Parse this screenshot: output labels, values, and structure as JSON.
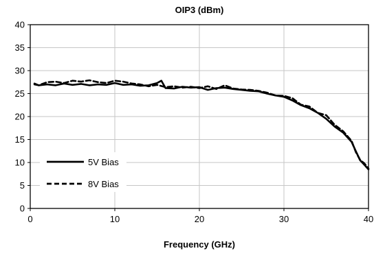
{
  "chart_data": {
    "type": "line",
    "title": "OIP3 (dBm)",
    "xlabel": "Frequency (GHz)",
    "ylabel": "",
    "xlim": [
      0,
      40
    ],
    "ylim": [
      0,
      40
    ],
    "xticks": [
      0,
      10,
      20,
      30,
      40
    ],
    "yticks": [
      0,
      5,
      10,
      15,
      20,
      25,
      30,
      35,
      40
    ],
    "grid": true,
    "legend_position": "bottom-left",
    "series": [
      {
        "name": "5V Bias",
        "style": "solid",
        "color": "#000000",
        "x": [
          0.5,
          1,
          2,
          3,
          4,
          5,
          6,
          7,
          8,
          9,
          10,
          11,
          12,
          13,
          14,
          15,
          15.5,
          16,
          17,
          18,
          19,
          20,
          21,
          22,
          23,
          24,
          25,
          26,
          27,
          28,
          29,
          30,
          31,
          32,
          33,
          34,
          35,
          36,
          37,
          38,
          38.5,
          39,
          39.5,
          40
        ],
        "y": [
          27.0,
          26.8,
          27.0,
          26.8,
          27.2,
          26.9,
          27.1,
          26.8,
          27.0,
          26.9,
          27.3,
          26.9,
          27.0,
          26.7,
          26.8,
          27.3,
          27.8,
          26.2,
          26.1,
          26.5,
          26.3,
          26.4,
          25.8,
          26.2,
          26.3,
          26.0,
          25.8,
          25.6,
          25.5,
          25.0,
          24.6,
          24.3,
          23.5,
          22.5,
          21.8,
          20.8,
          19.5,
          17.8,
          16.5,
          14.5,
          12.5,
          10.5,
          9.5,
          8.5
        ]
      },
      {
        "name": "8V Bias",
        "style": "dashed",
        "color": "#000000",
        "x": [
          0.5,
          1,
          2,
          3,
          4,
          5,
          6,
          7,
          8,
          9,
          10,
          11,
          12,
          13,
          14,
          15,
          16,
          17,
          18,
          19,
          20,
          21,
          22,
          23,
          24,
          25,
          26,
          27,
          28,
          29,
          30,
          31,
          32,
          33,
          34,
          35,
          36,
          37,
          38,
          38.5,
          39,
          39.5,
          40
        ],
        "y": [
          27.2,
          26.8,
          27.5,
          27.6,
          27.3,
          27.8,
          27.6,
          27.9,
          27.5,
          27.3,
          27.8,
          27.6,
          27.2,
          27.0,
          26.6,
          26.9,
          26.4,
          26.6,
          26.3,
          26.5,
          26.2,
          26.6,
          26.0,
          26.8,
          26.1,
          25.9,
          25.8,
          25.6,
          25.2,
          24.6,
          24.5,
          24.0,
          22.6,
          22.2,
          20.8,
          20.3,
          18.2,
          16.8,
          14.7,
          12.3,
          10.6,
          9.8,
          8.7
        ]
      }
    ]
  }
}
